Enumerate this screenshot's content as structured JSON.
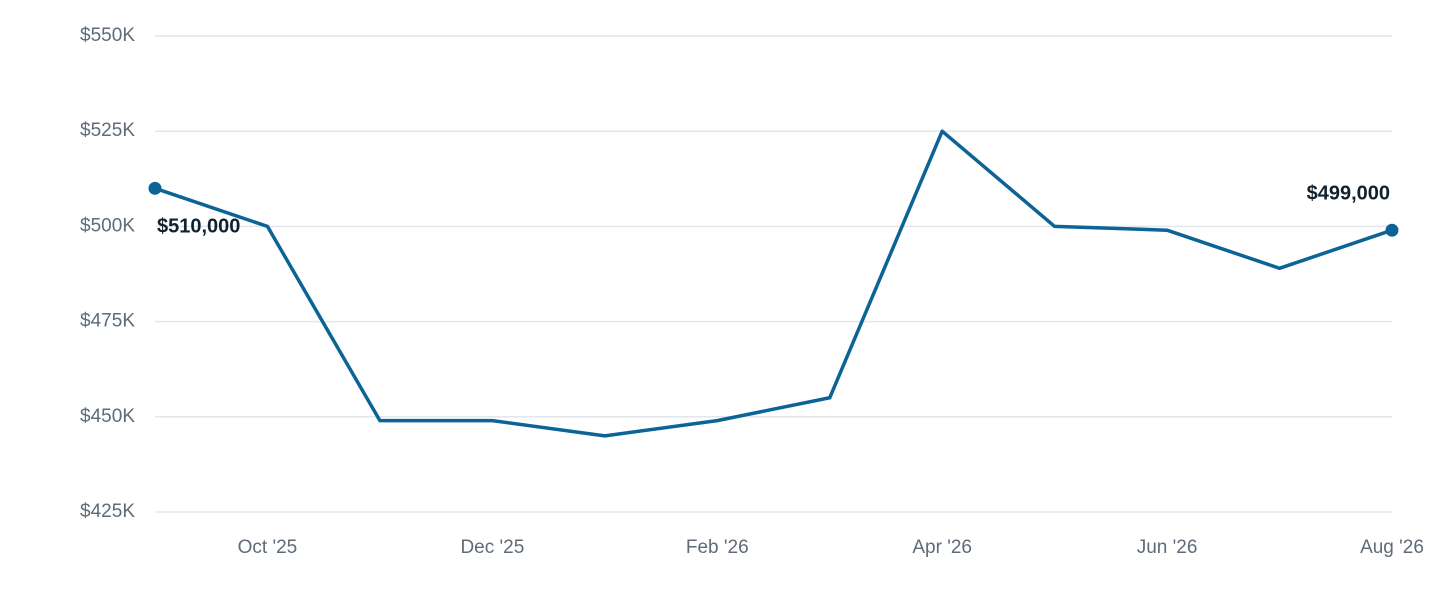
{
  "chart_data": {
    "type": "line",
    "categories": [
      null,
      "Oct '25",
      null,
      "Dec '25",
      null,
      "Feb '26",
      null,
      "Apr '26",
      null,
      "Jun '26",
      null,
      "Aug '26"
    ],
    "values": [
      510000,
      500000,
      449000,
      449000,
      445000,
      449000,
      455000,
      525000,
      500000,
      499000,
      489000,
      499000
    ],
    "value_labels": [
      "$510,000",
      null,
      null,
      null,
      null,
      null,
      null,
      null,
      null,
      null,
      null,
      "$499,000"
    ],
    "color": "#0b6396",
    "ylim": [
      425000,
      550000
    ],
    "yticks": [
      {
        "value": 425000,
        "label": "$425K"
      },
      {
        "value": 450000,
        "label": "$450K"
      },
      {
        "value": 475000,
        "label": "$475K"
      },
      {
        "value": 500000,
        "label": "$500K"
      },
      {
        "value": 525000,
        "label": "$525K"
      },
      {
        "value": 550000,
        "label": "$550K"
      }
    ],
    "grid": true
  }
}
